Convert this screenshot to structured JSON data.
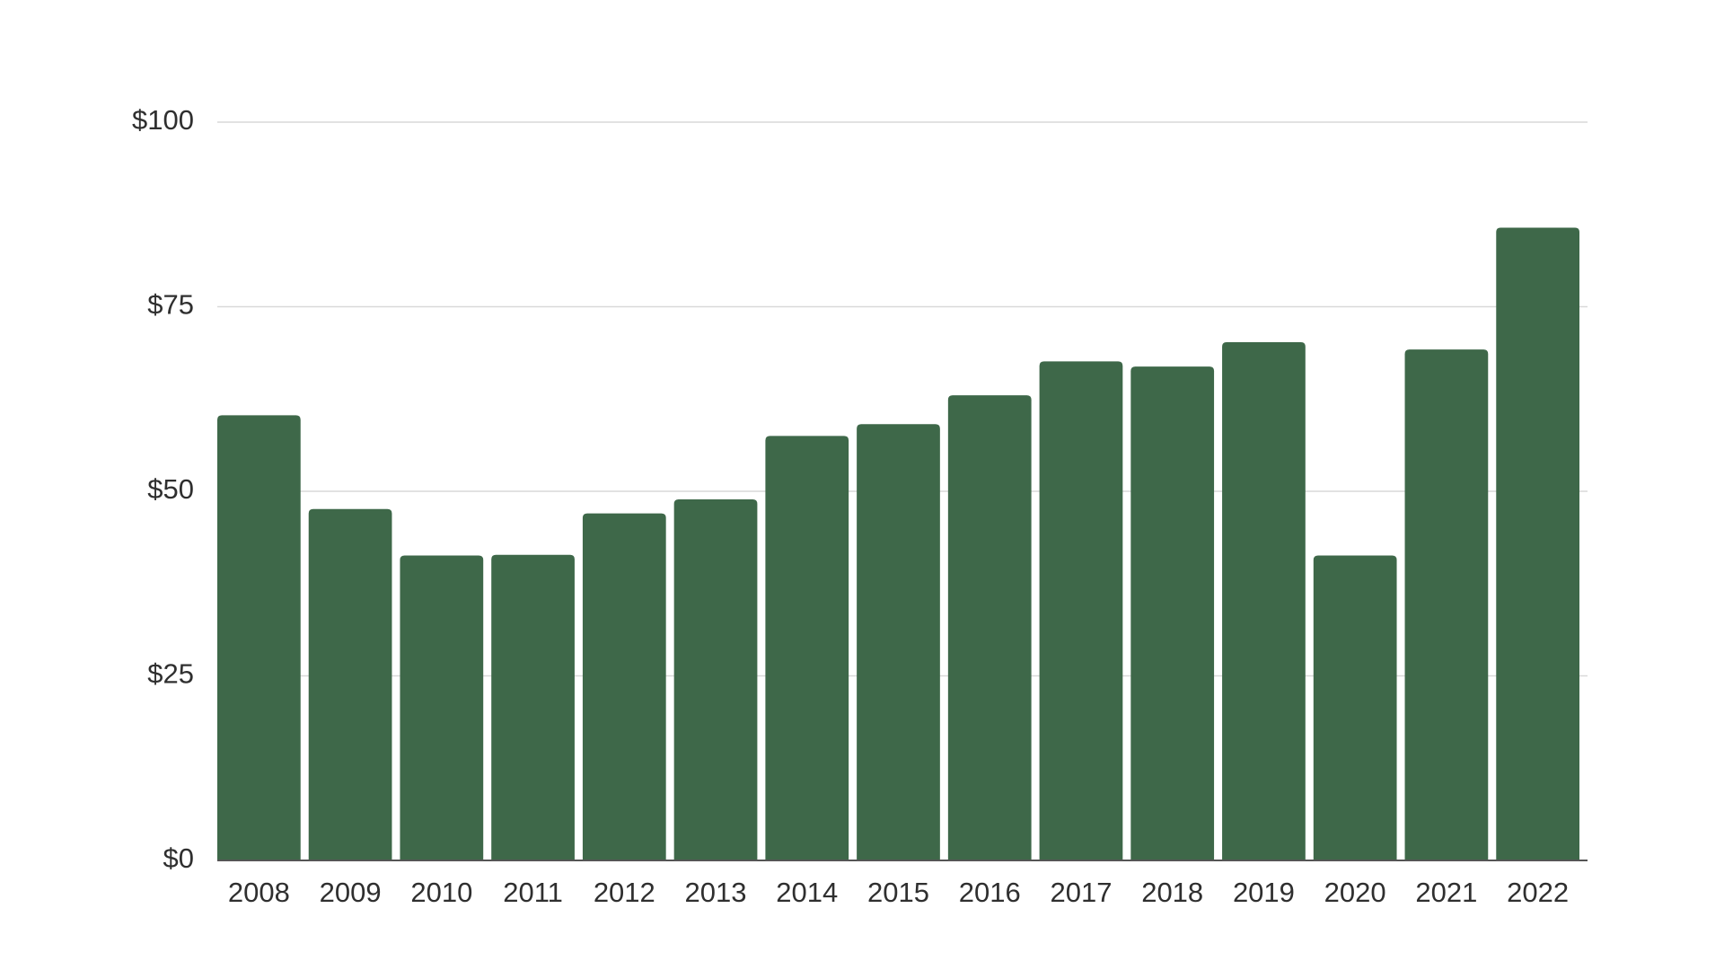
{
  "chart_data": {
    "type": "bar",
    "title": "",
    "xlabel": "",
    "ylabel": "",
    "categories": [
      "2008",
      "2009",
      "2010",
      "2011",
      "2012",
      "2013",
      "2014",
      "2015",
      "2016",
      "2017",
      "2018",
      "2019",
      "2020",
      "2021",
      "2022"
    ],
    "series": [
      {
        "values": [
          60.3,
          47.6,
          41.3,
          41.4,
          47.0,
          48.9,
          57.5,
          59.1,
          63.0,
          67.6,
          66.9,
          70.2,
          41.3,
          69.2,
          85.7
        ]
      }
    ],
    "ylim": [
      0,
      100
    ],
    "yticks": [
      0,
      25,
      50,
      75,
      100
    ],
    "ytick_labels": [
      "$0",
      "$25",
      "$50",
      "$75",
      "$100"
    ],
    "grid": true,
    "legend": "none",
    "bar_color": "#3e6849"
  }
}
